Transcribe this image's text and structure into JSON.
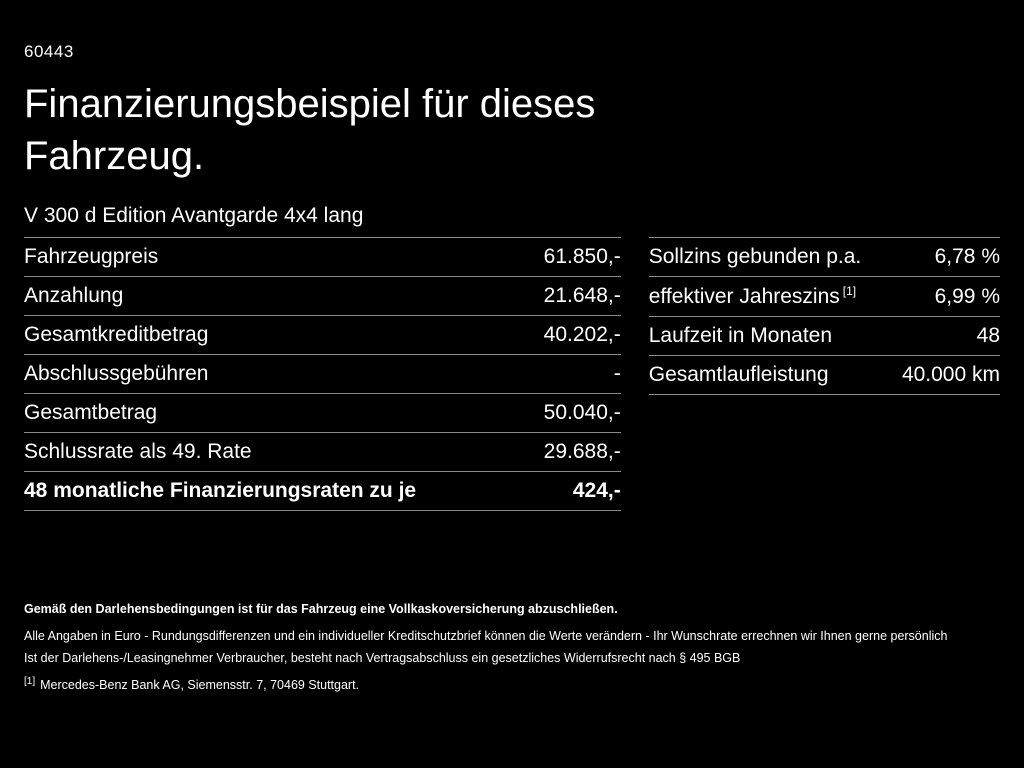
{
  "page": {
    "doc_code": "60443",
    "title_line1": "Finanzierungsbeispiel für dieses",
    "title_line2": "Fahrzeug.",
    "subtitle": "V 300 d Edition Avantgarde 4x4 lang"
  },
  "left_table": {
    "rows": [
      {
        "label": "Fahrzeugpreis",
        "value": "61.850,-"
      },
      {
        "label": "Anzahlung",
        "value": "21.648,-"
      },
      {
        "label": "Gesamtkreditbetrag",
        "value": "40.202,-"
      },
      {
        "label": "Abschlussgebühren",
        "value": "-"
      },
      {
        "label": "Gesamtbetrag",
        "value": "50.040,-"
      },
      {
        "label": "Schlussrate als 49. Rate",
        "value": "29.688,-"
      },
      {
        "label": "48 monatliche Finanzierungsraten zu je",
        "value": "424,-"
      }
    ]
  },
  "right_table": {
    "rows": [
      {
        "label": "Sollzins gebunden p.a.",
        "sup": "",
        "value": "6,78 %"
      },
      {
        "label": "effektiver Jahreszins",
        "sup": "[1]",
        "value": "6,99 %"
      },
      {
        "label": "Laufzeit in Monaten",
        "sup": "",
        "value": "48"
      },
      {
        "label": "Gesamtlaufleistung",
        "sup": "",
        "value": "40.000 km"
      }
    ]
  },
  "footer": {
    "bold_line": "Gemäß den Darlehensbedingungen ist für das Fahrzeug eine Vollkaskoversicherung abzuschließen.",
    "line2": "Alle Angaben in Euro - Rundungsdifferenzen und ein individueller Kreditschutzbrief können die Werte verändern - Ihr Wunschrate errechnen wir Ihnen gerne persönlich",
    "line3": "Ist der Darlehens-/Leasingnehmer Verbraucher, besteht nach Vertragsabschluss ein gesetzliches Widerrufsrecht nach § 495 BGB",
    "footnote_marker": "[1]",
    "footnote_text": "Mercedes-Benz Bank AG, Siemensstr. 7, 70469 Stuttgart."
  },
  "colors": {
    "background": "#000000",
    "text": "#ffffff",
    "divider": "#8a8a8a"
  }
}
